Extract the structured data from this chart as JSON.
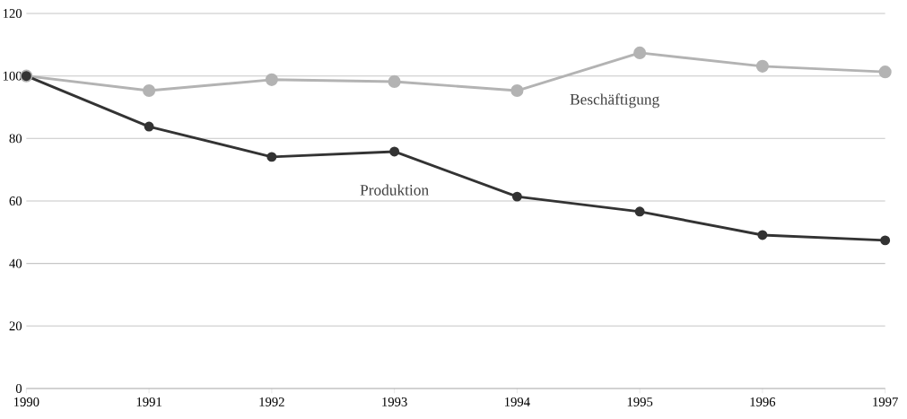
{
  "chart_data": {
    "type": "line",
    "x": [
      1990,
      1991,
      1992,
      1993,
      1994,
      1995,
      1996,
      1997
    ],
    "series": [
      {
        "name": "Beschäftigung",
        "color": "#b3b3b3",
        "values": [
          100,
          95.3,
          98.8,
          98.2,
          95.3,
          107.4,
          103.1,
          101.3
        ]
      },
      {
        "name": "Produktion",
        "color": "#333333",
        "values": [
          100,
          83.8,
          74.1,
          75.8,
          61.4,
          56.6,
          49.1,
          47.4
        ]
      }
    ],
    "xlim": [
      1990,
      1997
    ],
    "ylim": [
      0,
      120
    ],
    "xticks": [
      1990,
      1991,
      1992,
      1993,
      1994,
      1995,
      1996,
      1997
    ],
    "yticks": [
      0,
      20,
      40,
      60,
      80,
      100,
      120
    ],
    "grid": "y",
    "legend": false,
    "marker": "circle",
    "line_style": "solid"
  }
}
